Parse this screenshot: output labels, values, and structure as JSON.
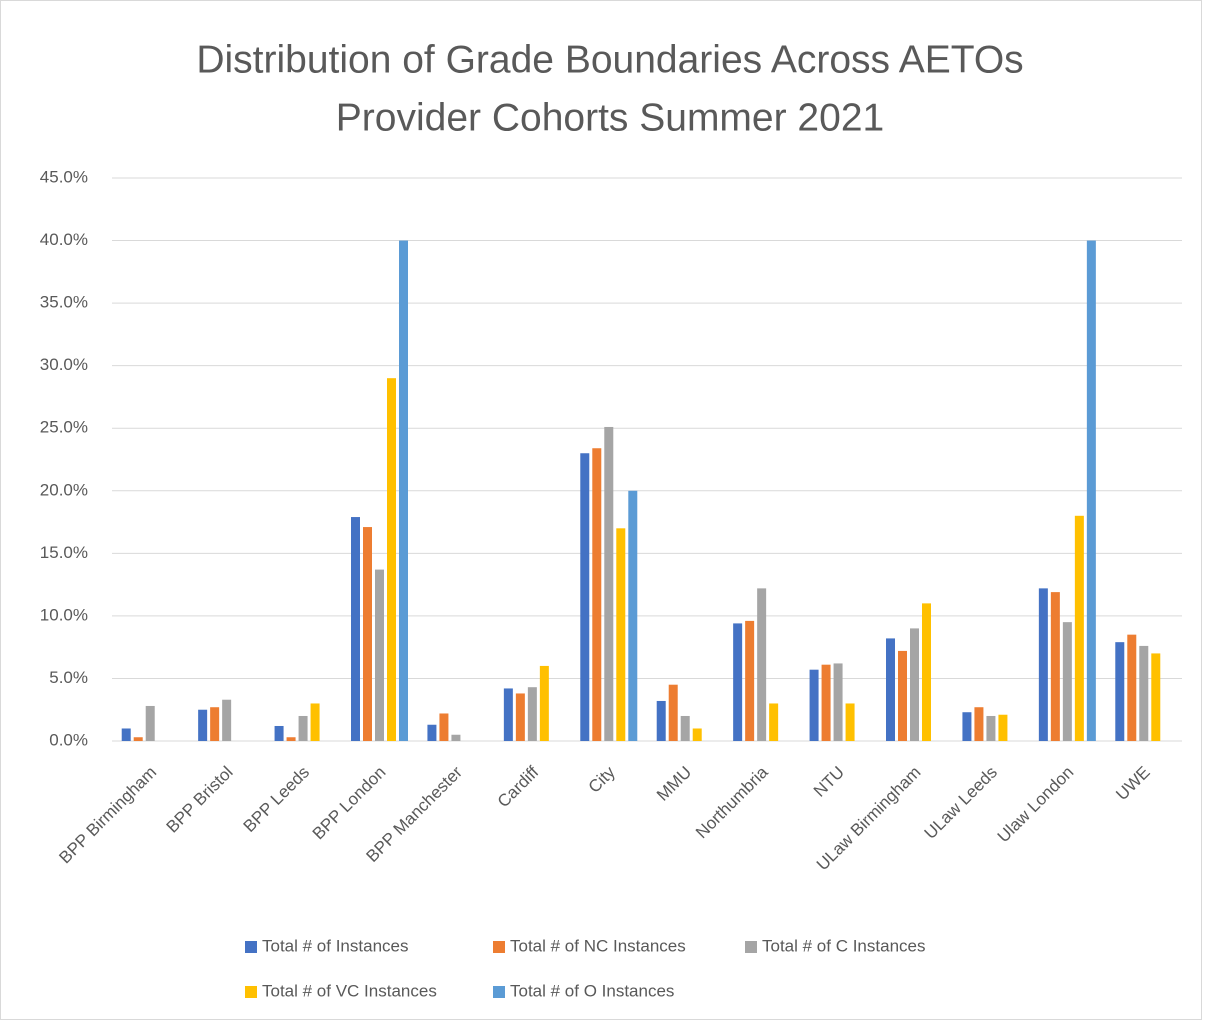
{
  "chart_data": {
    "type": "bar",
    "title": [
      "Distribution of Grade Boundaries Across AETOs",
      "Provider Cohorts Summer  2021"
    ],
    "categories": [
      "BPP Birmingham",
      "BPP Bristol",
      "BPP Leeds",
      "BPP London",
      "BPP Manchester",
      "Cardiff",
      "City",
      "MMU",
      "Northumbria",
      "NTU",
      "ULaw Birmingham",
      "ULaw Leeds",
      "Ulaw London",
      "UWE"
    ],
    "series": [
      {
        "name": "Total # of Instances",
        "color": "#4472c4",
        "values": [
          1.0,
          2.5,
          1.2,
          17.9,
          1.3,
          4.2,
          23.0,
          3.2,
          9.4,
          5.7,
          8.2,
          2.3,
          12.2,
          7.9
        ]
      },
      {
        "name": "Total # of NC Instances",
        "color": "#ed7d31",
        "values": [
          0.3,
          2.7,
          0.3,
          17.1,
          2.2,
          3.8,
          23.4,
          4.5,
          9.6,
          6.1,
          7.2,
          2.7,
          11.9,
          8.5
        ]
      },
      {
        "name": "Total # of C Instances",
        "color": "#a5a5a5",
        "values": [
          2.8,
          3.3,
          2.0,
          13.7,
          0.5,
          4.3,
          25.1,
          2.0,
          12.2,
          6.2,
          9.0,
          2.0,
          9.5,
          7.6
        ]
      },
      {
        "name": "Total # of VC Instances",
        "color": "#ffc000",
        "values": [
          0,
          0,
          3.0,
          29.0,
          0,
          6.0,
          17.0,
          1.0,
          3.0,
          3.0,
          11.0,
          2.1,
          18.0,
          7.0
        ]
      },
      {
        "name": "Total # of O Instances",
        "color": "#5b9bd5",
        "values": [
          0,
          0,
          0,
          40.0,
          0,
          0,
          20.0,
          0,
          0,
          0,
          0,
          0,
          40.0,
          0
        ]
      }
    ],
    "ylim": [
      0,
      45
    ],
    "yticks": [
      {
        "value": 0,
        "label": "0.0%"
      },
      {
        "value": 5,
        "label": "5.0%"
      },
      {
        "value": 10,
        "label": "10.0%"
      },
      {
        "value": 15,
        "label": "15.0%"
      },
      {
        "value": 20,
        "label": "20.0%"
      },
      {
        "value": 25,
        "label": "25.0%"
      },
      {
        "value": 30,
        "label": "30.0%"
      },
      {
        "value": 35,
        "label": "35.0%"
      },
      {
        "value": 40,
        "label": "40.0%"
      },
      {
        "value": 45,
        "label": "45.0%"
      }
    ],
    "grid": true,
    "legend": "bottom"
  }
}
